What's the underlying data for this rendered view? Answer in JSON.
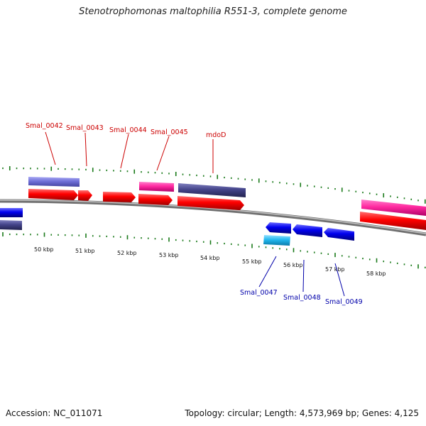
{
  "title": "Stenotrophomonas maltophilia R551-3, complete genome",
  "footer": {
    "accession": "Accession: NC_011071",
    "stats": "Topology: circular; Length: 4,573,969 bp; Genes: 4,125"
  },
  "colors": {
    "forward_cds": "#ff0000",
    "reverse_cds": "#0000ee",
    "forward_gene_label": "#cc0000",
    "reverse_gene_label": "#0000aa",
    "purple_feature": "#4a4a8c",
    "lavender_feature": "#7878d8",
    "pink_feature": "#ff2aa0",
    "cyan_feature": "#22b8ee",
    "tick": "#1a7a1a",
    "backbone": "#808080"
  },
  "kbp_labels": [
    "50 kbp",
    "51 kbp",
    "52 kbp",
    "53 kbp",
    "54 kbp",
    "55 kbp",
    "56 kbp",
    "57 kbp",
    "58 kbp"
  ],
  "forward_genes": [
    {
      "label": "Smal_0042"
    },
    {
      "label": "Smal_0043"
    },
    {
      "label": "Smal_0044"
    },
    {
      "label": "Smal_0045"
    },
    {
      "label": "mdoD"
    }
  ],
  "reverse_genes": [
    {
      "label": "Smal_0047"
    },
    {
      "label": "Smal_0048"
    },
    {
      "label": "Smal_0049"
    }
  ]
}
